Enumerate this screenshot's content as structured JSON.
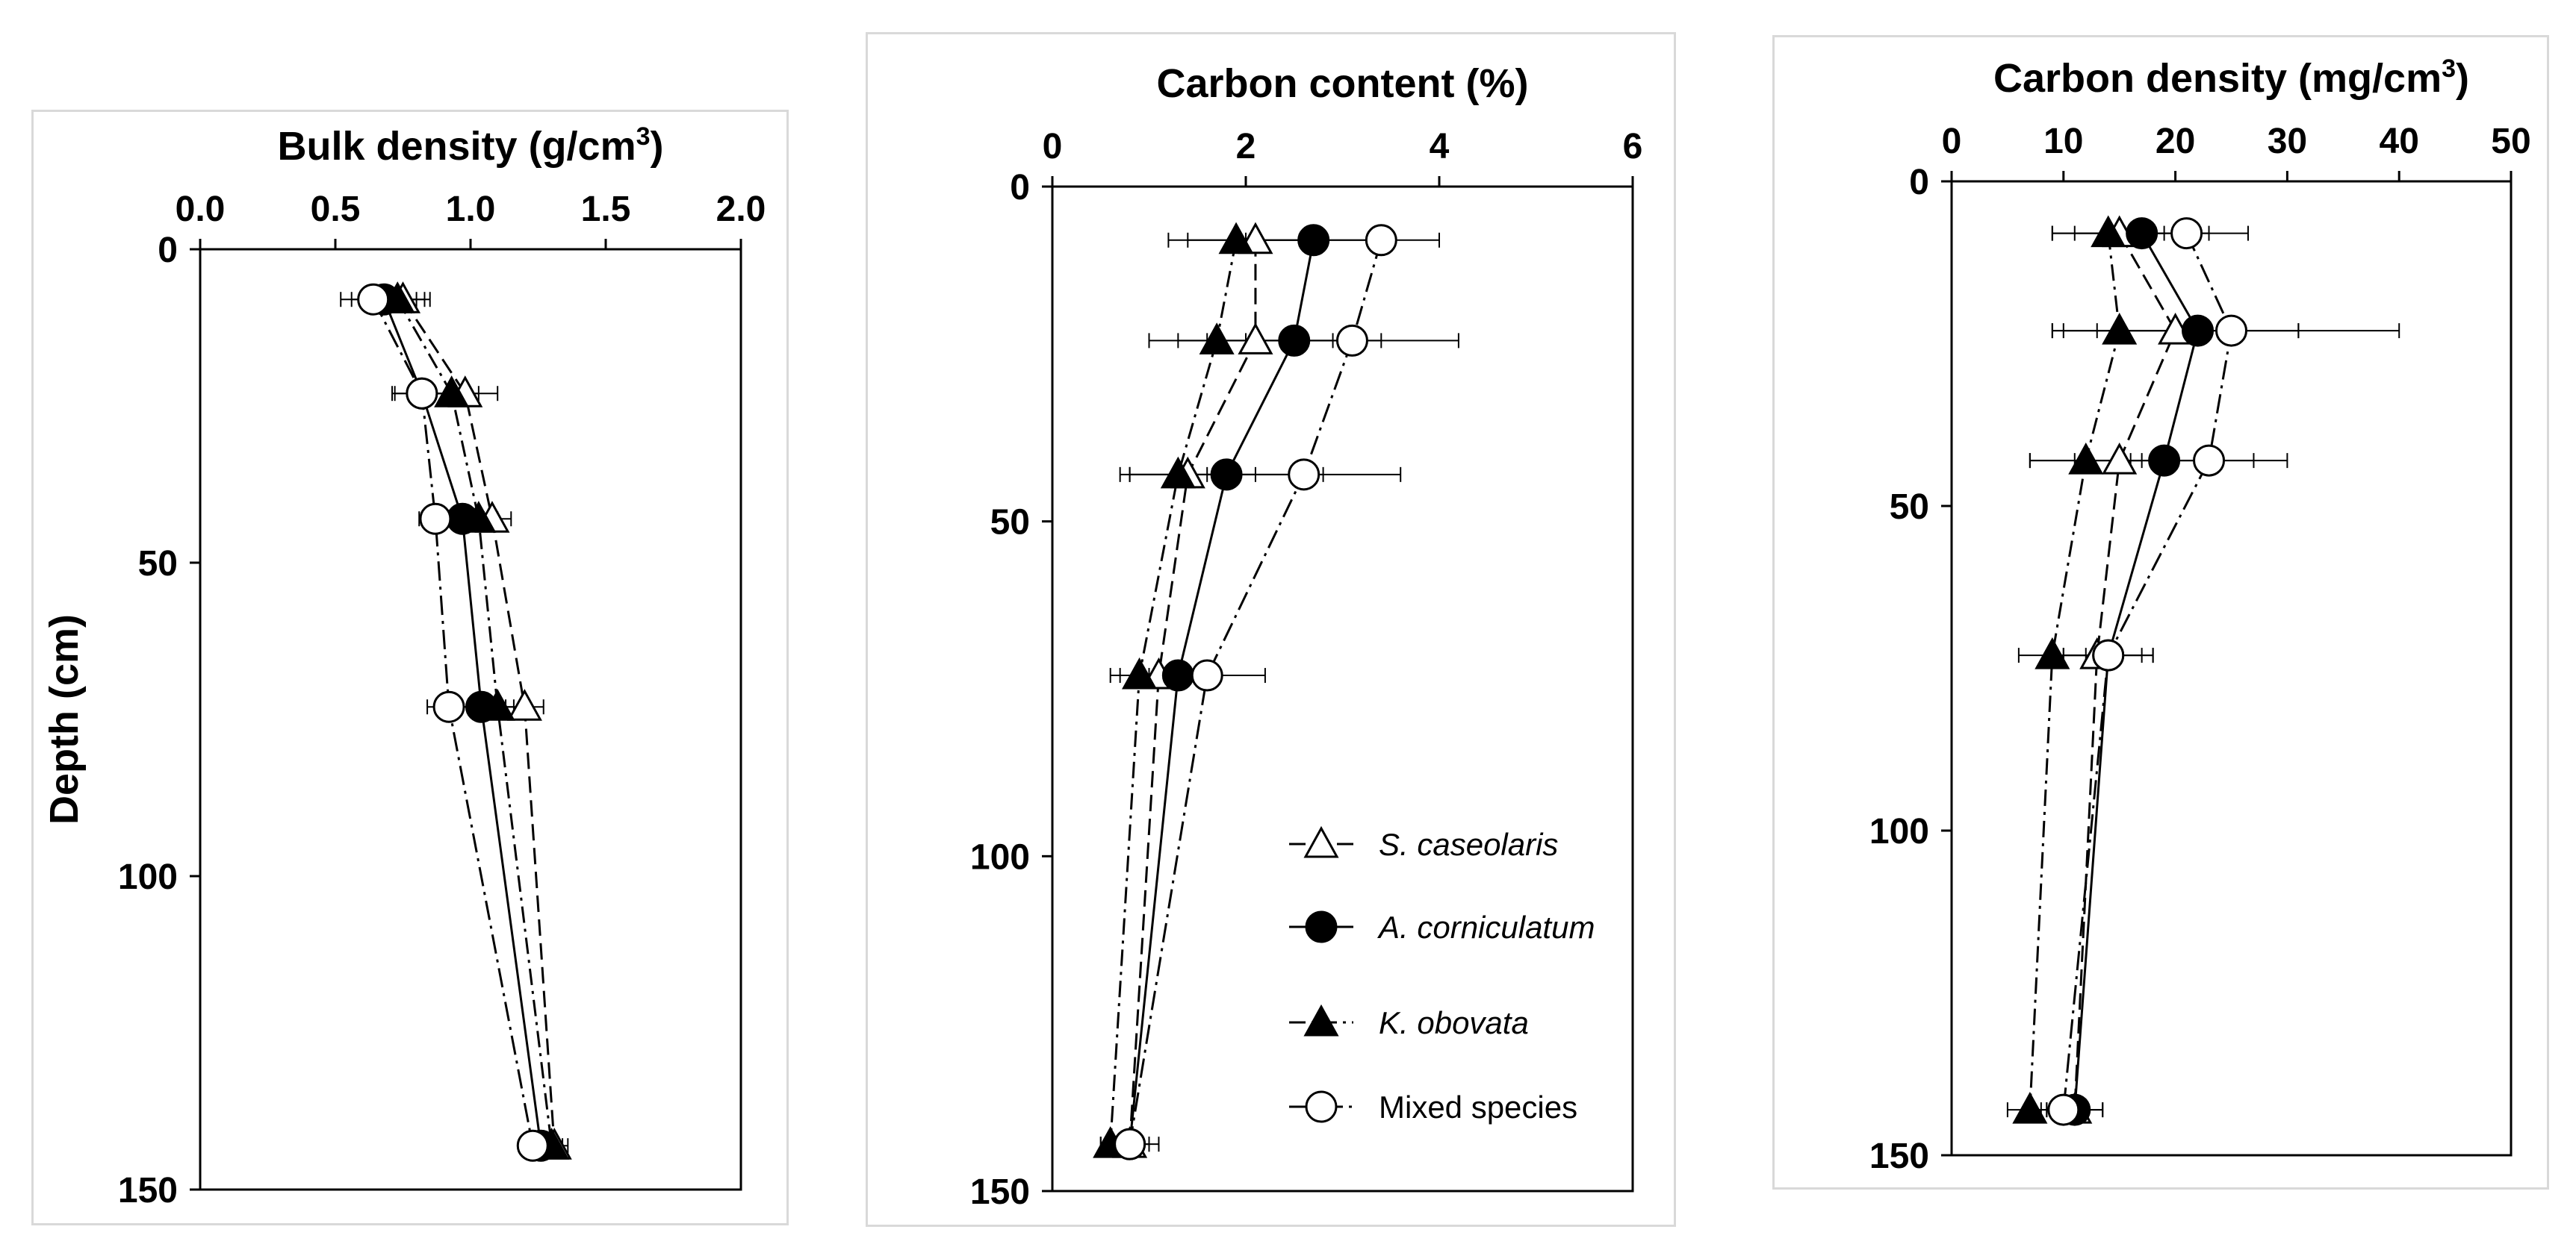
{
  "chart_data": [
    {
      "type": "line",
      "xlabel_main": "Bulk density (g/cm",
      "xlabel_sup": "3",
      "xlabel_close": ")",
      "ylabel": "Depth (cm)",
      "xlim": [
        0,
        2
      ],
      "ylim": [
        0,
        150
      ],
      "x_ticks": [
        "0.0",
        "0.5",
        "1.0",
        "1.5",
        "2.0"
      ],
      "y_ticks": [
        "0",
        "50",
        "100",
        "150"
      ],
      "depths": [
        8,
        23,
        43,
        73,
        143
      ],
      "series": [
        {
          "key": "sc",
          "values": [
            0.75,
            0.98,
            1.08,
            1.2,
            1.31
          ],
          "err": [
            0.1,
            0.12,
            0.07,
            0.07,
            0.05
          ]
        },
        {
          "key": "ac",
          "values": [
            0.68,
            0.82,
            0.97,
            1.04,
            1.26
          ],
          "err": [
            0.12,
            0.11,
            0.08,
            0.07,
            0.04
          ]
        },
        {
          "key": "ko",
          "values": [
            0.73,
            0.93,
            1.03,
            1.1,
            1.3
          ],
          "err": [
            0.1,
            0.1,
            0.07,
            0.06,
            0.04
          ]
        },
        {
          "key": "mx",
          "values": [
            0.64,
            0.82,
            0.87,
            0.92,
            1.23
          ],
          "err": [
            0.12,
            0.1,
            0.06,
            0.08,
            0.05
          ]
        }
      ]
    },
    {
      "type": "line",
      "xlabel": "Carbon content (%)",
      "xlim": [
        0,
        6
      ],
      "ylim": [
        0,
        150
      ],
      "x_ticks": [
        "0",
        "2",
        "4",
        "6"
      ],
      "y_ticks": [
        "0",
        "50",
        "100",
        "150"
      ],
      "depths": [
        8,
        23,
        43,
        73,
        143
      ],
      "series": [
        {
          "key": "sc",
          "values": [
            2.1,
            2.1,
            1.4,
            1.1,
            0.8
          ],
          "err": [
            0.7,
            0.8,
            0.7,
            0.4,
            0.2
          ]
        },
        {
          "key": "ac",
          "values": [
            2.7,
            2.5,
            1.8,
            1.3,
            0.8
          ],
          "err": [
            0.7,
            0.9,
            1.0,
            0.4,
            0.2
          ]
        },
        {
          "key": "ko",
          "values": [
            1.9,
            1.7,
            1.3,
            0.9,
            0.6
          ],
          "err": [
            0.7,
            0.7,
            0.5,
            0.3,
            0.1
          ]
        },
        {
          "key": "mx",
          "values": [
            3.4,
            3.1,
            2.6,
            1.6,
            0.8
          ],
          "err": [
            0.6,
            1.1,
            1.0,
            0.6,
            0.3
          ]
        }
      ]
    },
    {
      "type": "line",
      "xlabel_main": "Carbon density (mg/cm",
      "xlabel_sup": "3",
      "xlabel_close": ")",
      "xlim": [
        0,
        50
      ],
      "ylim": [
        0,
        150
      ],
      "x_ticks": [
        "0",
        "10",
        "20",
        "30",
        "40",
        "50"
      ],
      "y_ticks": [
        "0",
        "50",
        "100",
        "150"
      ],
      "depths": [
        8,
        23,
        43,
        73,
        143
      ],
      "series": [
        {
          "key": "sc",
          "values": [
            15.0,
            20.0,
            15.0,
            13.0,
            11.0
          ],
          "err": [
            6.0,
            11.0,
            8.0,
            4.0,
            2.5
          ]
        },
        {
          "key": "ac",
          "values": [
            17.0,
            22.0,
            19.0,
            14.0,
            11.0
          ],
          "err": [
            6.0,
            9.0,
            8.0,
            4.0,
            2.5
          ]
        },
        {
          "key": "ko",
          "values": [
            14.0,
            15.0,
            12.0,
            9.0,
            7.0
          ],
          "err": [
            5.0,
            6.0,
            5.0,
            3.0,
            2.0
          ]
        },
        {
          "key": "mx",
          "values": [
            21.0,
            25.0,
            23.0,
            14.0,
            10.0
          ],
          "err": [
            5.5,
            15.0,
            7.0,
            4.0,
            2.0
          ]
        }
      ]
    }
  ],
  "legend": [
    {
      "key": "sc",
      "label": "S. caseolaris",
      "italic": true,
      "marker": "triangle-open",
      "dash": "22,10"
    },
    {
      "key": "ac",
      "label": "A. corniculatum",
      "italic": true,
      "marker": "circle-filled",
      "dash": ""
    },
    {
      "key": "ko",
      "label": "K. obovata",
      "italic": true,
      "marker": "triangle-filled",
      "dash": "22,8,4,8"
    },
    {
      "key": "mx",
      "label": "Mixed species",
      "italic": false,
      "marker": "circle-open",
      "dash": "26,8,4,8"
    }
  ],
  "colors": {
    "line": "#000000",
    "frame": "#d9d9d9",
    "background": "#ffffff"
  }
}
